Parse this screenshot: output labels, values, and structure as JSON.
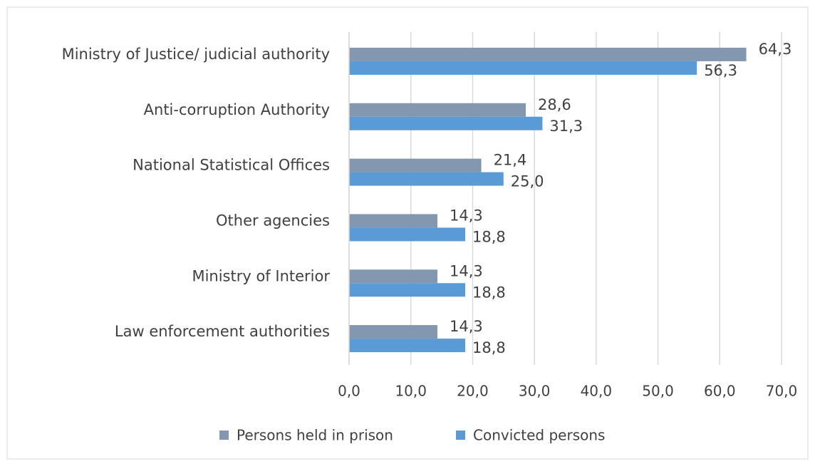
{
  "chart_data": {
    "type": "hbar",
    "categories": [
      "Ministry of Justice/ judicial authority",
      "Anti-corruption Authority",
      "National Statistical Offices",
      "Other agencies",
      "Ministry of Interior",
      "Law enforcement authorities"
    ],
    "series": [
      {
        "name": "Persons held in prison",
        "color": "#8497b0",
        "values": [
          64.3,
          28.6,
          21.4,
          14.3,
          14.3,
          14.3
        ],
        "value_labels": [
          "64,3",
          "28,6",
          "21,4",
          "14,3",
          "14,3",
          "14,3"
        ]
      },
      {
        "name": "Convicted persons",
        "color": "#5b9bd5",
        "values": [
          56.3,
          31.3,
          25.0,
          18.8,
          18.8,
          18.8
        ],
        "value_labels": [
          "56,3",
          "31,3",
          "25,0",
          "18,8",
          "18,8",
          "18,8"
        ]
      }
    ],
    "xlim": [
      0,
      70
    ],
    "xticks": [
      {
        "value": 0,
        "label": "0,0"
      },
      {
        "value": 10,
        "label": "10,0"
      },
      {
        "value": 20,
        "label": "20,0"
      },
      {
        "value": 30,
        "label": "30,0"
      },
      {
        "value": 40,
        "label": "40,0"
      },
      {
        "value": 50,
        "label": "50,0"
      },
      {
        "value": 60,
        "label": "60,0"
      },
      {
        "value": 70,
        "label": "70,0"
      }
    ],
    "grid": true,
    "legend": "bottom"
  }
}
